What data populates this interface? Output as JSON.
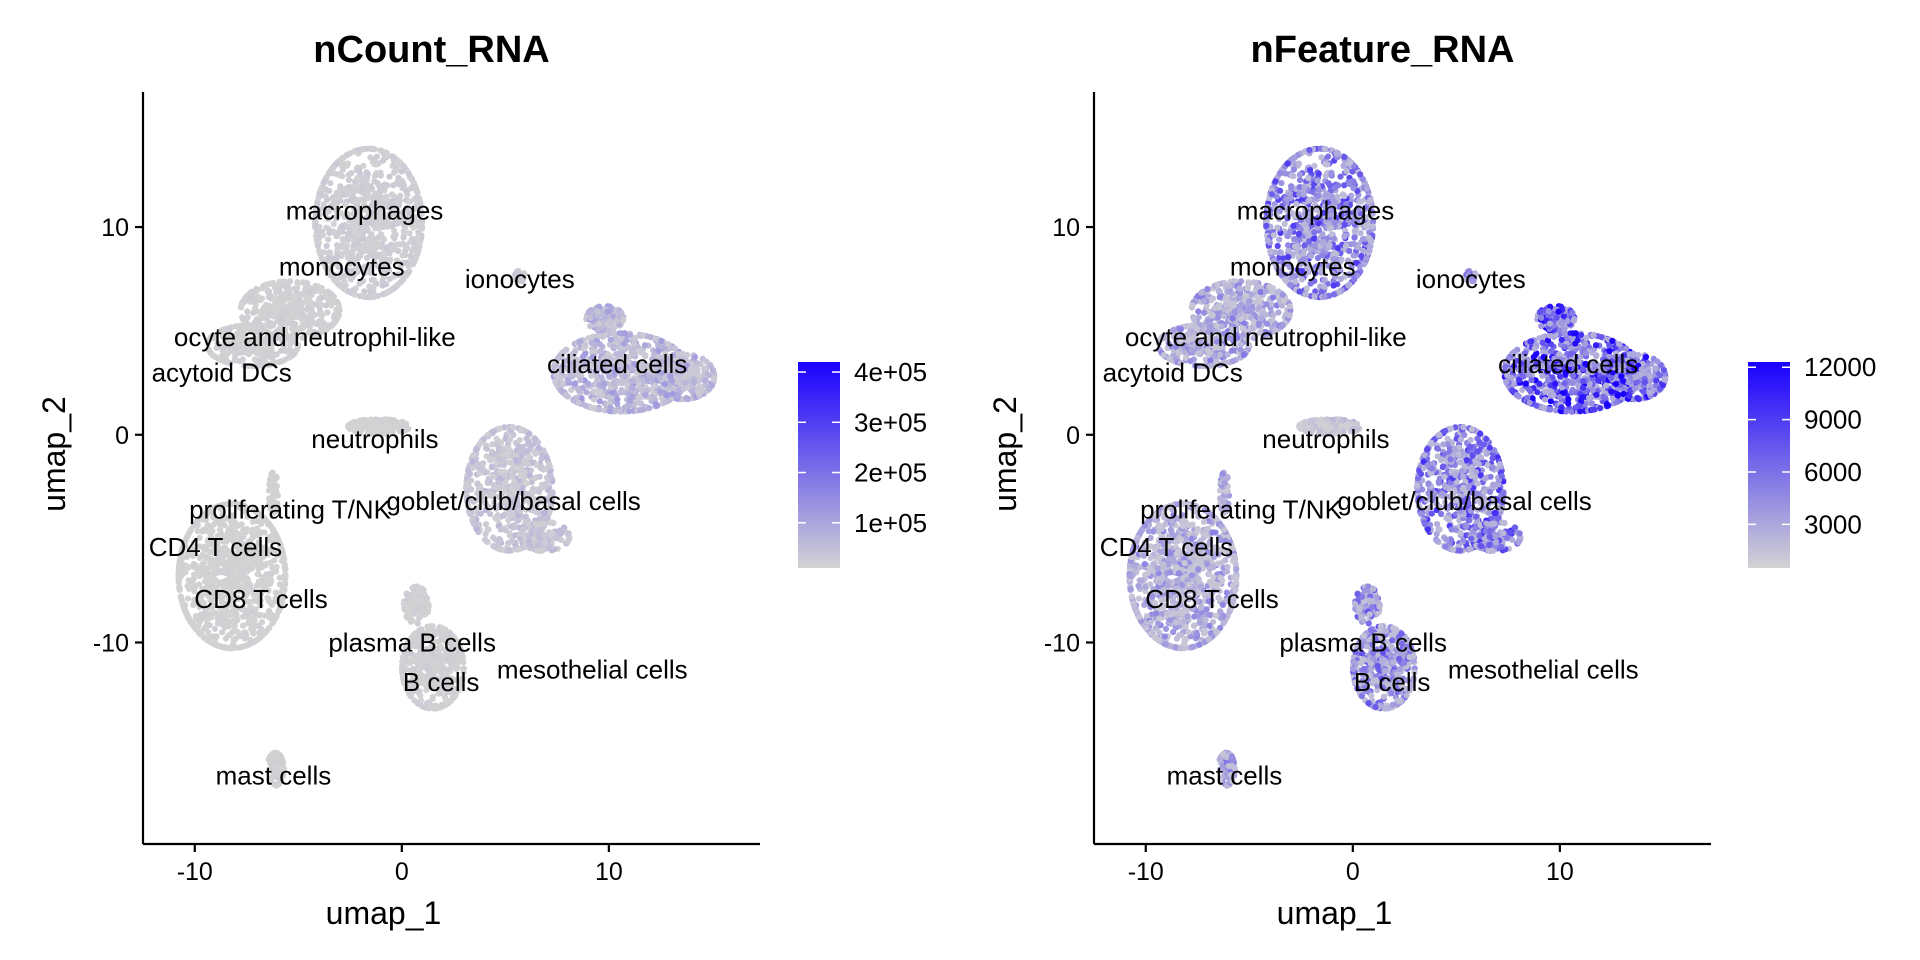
{
  "chart_data": [
    {
      "type": "scatter",
      "title": "nCount_RNA",
      "xlabel": "umap_1",
      "ylabel": "umap_2",
      "xticks": [
        -10,
        0,
        10
      ],
      "yticks": [
        -10,
        0,
        10
      ],
      "xlim": [
        -12.5,
        17.3
      ],
      "ylim": [
        -19.7,
        16.5
      ],
      "color_low": "#d3d3d3",
      "color_high": "#1a00ff",
      "legend": {
        "position": "right",
        "ticks": [
          "1e+05",
          "2e+05",
          "3e+05",
          "4e+05"
        ],
        "tick_values": [
          100000,
          200000,
          300000,
          400000
        ],
        "min": 10000,
        "max": 420000
      },
      "cluster_labels": [
        {
          "text": "macrophages",
          "x": -1.8,
          "y": 10.8
        },
        {
          "text": "monocytes",
          "x": -2.9,
          "y": 8.1
        },
        {
          "text": "ionocytes",
          "x": 5.7,
          "y": 7.5
        },
        {
          "text": "ocyte and neutrophil-like",
          "x": -4.2,
          "y": 4.7
        },
        {
          "text": "acytoid DCs",
          "x": -8.7,
          "y": 3.0
        },
        {
          "text": "ciliated cells",
          "x": 10.4,
          "y": 3.4
        },
        {
          "text": "neutrophils",
          "x": -1.3,
          "y": -0.2
        },
        {
          "text": "goblet/club/basal cells",
          "x": 5.4,
          "y": -3.2
        },
        {
          "text": "proliferating T/NK",
          "x": -5.4,
          "y": -3.6
        },
        {
          "text": "CD4 T cells",
          "x": -9.0,
          "y": -5.4
        },
        {
          "text": "CD8 T cells",
          "x": -6.8,
          "y": -7.9
        },
        {
          "text": "plasma B cells",
          "x": 0.5,
          "y": -10.0
        },
        {
          "text": "B cells",
          "x": 1.9,
          "y": -11.9
        },
        {
          "text": "mesothelial cells",
          "x": 9.2,
          "y": -11.3
        },
        {
          "text": "mast cells",
          "x": -6.2,
          "y": -16.4
        }
      ],
      "expression_by_cluster": [
        {
          "cluster": "macrophages",
          "level": 0.03
        },
        {
          "cluster": "monocytes",
          "level": 0.02
        },
        {
          "cluster": "ionocytes",
          "level": 0.05
        },
        {
          "cluster": "neutrophils",
          "level": 0.01
        },
        {
          "cluster": "ciliated cells",
          "level": 0.16
        },
        {
          "cluster": "goblet/club/basal cells",
          "level": 0.08
        },
        {
          "cluster": "T cells",
          "level": 0.01
        },
        {
          "cluster": "B cells",
          "level": 0.02
        },
        {
          "cluster": "mast cells",
          "level": 0.02
        }
      ]
    },
    {
      "type": "scatter",
      "title": "nFeature_RNA",
      "xlabel": "umap_1",
      "ylabel": "umap_2",
      "xticks": [
        -10,
        0,
        10
      ],
      "yticks": [
        -10,
        0,
        10
      ],
      "xlim": [
        -12.5,
        17.3
      ],
      "ylim": [
        -19.7,
        16.5
      ],
      "color_low": "#d3d3d3",
      "color_high": "#1a00ff",
      "legend": {
        "position": "right",
        "ticks": [
          "3000",
          "6000",
          "9000",
          "12000"
        ],
        "tick_values": [
          3000,
          6000,
          9000,
          12000
        ],
        "min": 500,
        "max": 12300
      },
      "cluster_labels": [
        {
          "text": "macrophages",
          "x": -1.8,
          "y": 10.8
        },
        {
          "text": "monocytes",
          "x": -2.9,
          "y": 8.1
        },
        {
          "text": "ionocytes",
          "x": 5.7,
          "y": 7.5
        },
        {
          "text": "ocyte and neutrophil-like",
          "x": -4.2,
          "y": 4.7
        },
        {
          "text": "acytoid DCs",
          "x": -8.7,
          "y": 3.0
        },
        {
          "text": "ciliated cells",
          "x": 10.4,
          "y": 3.4
        },
        {
          "text": "neutrophils",
          "x": -1.3,
          "y": -0.2
        },
        {
          "text": "goblet/club/basal cells",
          "x": 5.4,
          "y": -3.2
        },
        {
          "text": "proliferating T/NK",
          "x": -5.4,
          "y": -3.6
        },
        {
          "text": "CD4 T cells",
          "x": -9.0,
          "y": -5.4
        },
        {
          "text": "CD8 T cells",
          "x": -6.8,
          "y": -7.9
        },
        {
          "text": "plasma B cells",
          "x": 0.5,
          "y": -10.0
        },
        {
          "text": "B cells",
          "x": 1.9,
          "y": -11.9
        },
        {
          "text": "mesothelial cells",
          "x": 9.2,
          "y": -11.3
        },
        {
          "text": "mast cells",
          "x": -6.2,
          "y": -16.4
        }
      ],
      "expression_by_cluster": [
        {
          "cluster": "macrophages",
          "level": 0.42
        },
        {
          "cluster": "monocytes",
          "level": 0.25
        },
        {
          "cluster": "ionocytes",
          "level": 0.35
        },
        {
          "cluster": "neutrophils",
          "level": 0.08
        },
        {
          "cluster": "ciliated cells",
          "level": 0.65
        },
        {
          "cluster": "goblet/club/basal cells",
          "level": 0.45
        },
        {
          "cluster": "T cells",
          "level": 0.22
        },
        {
          "cluster": "B cells",
          "level": 0.35
        },
        {
          "cluster": "mast cells",
          "level": 0.3
        }
      ]
    }
  ]
}
